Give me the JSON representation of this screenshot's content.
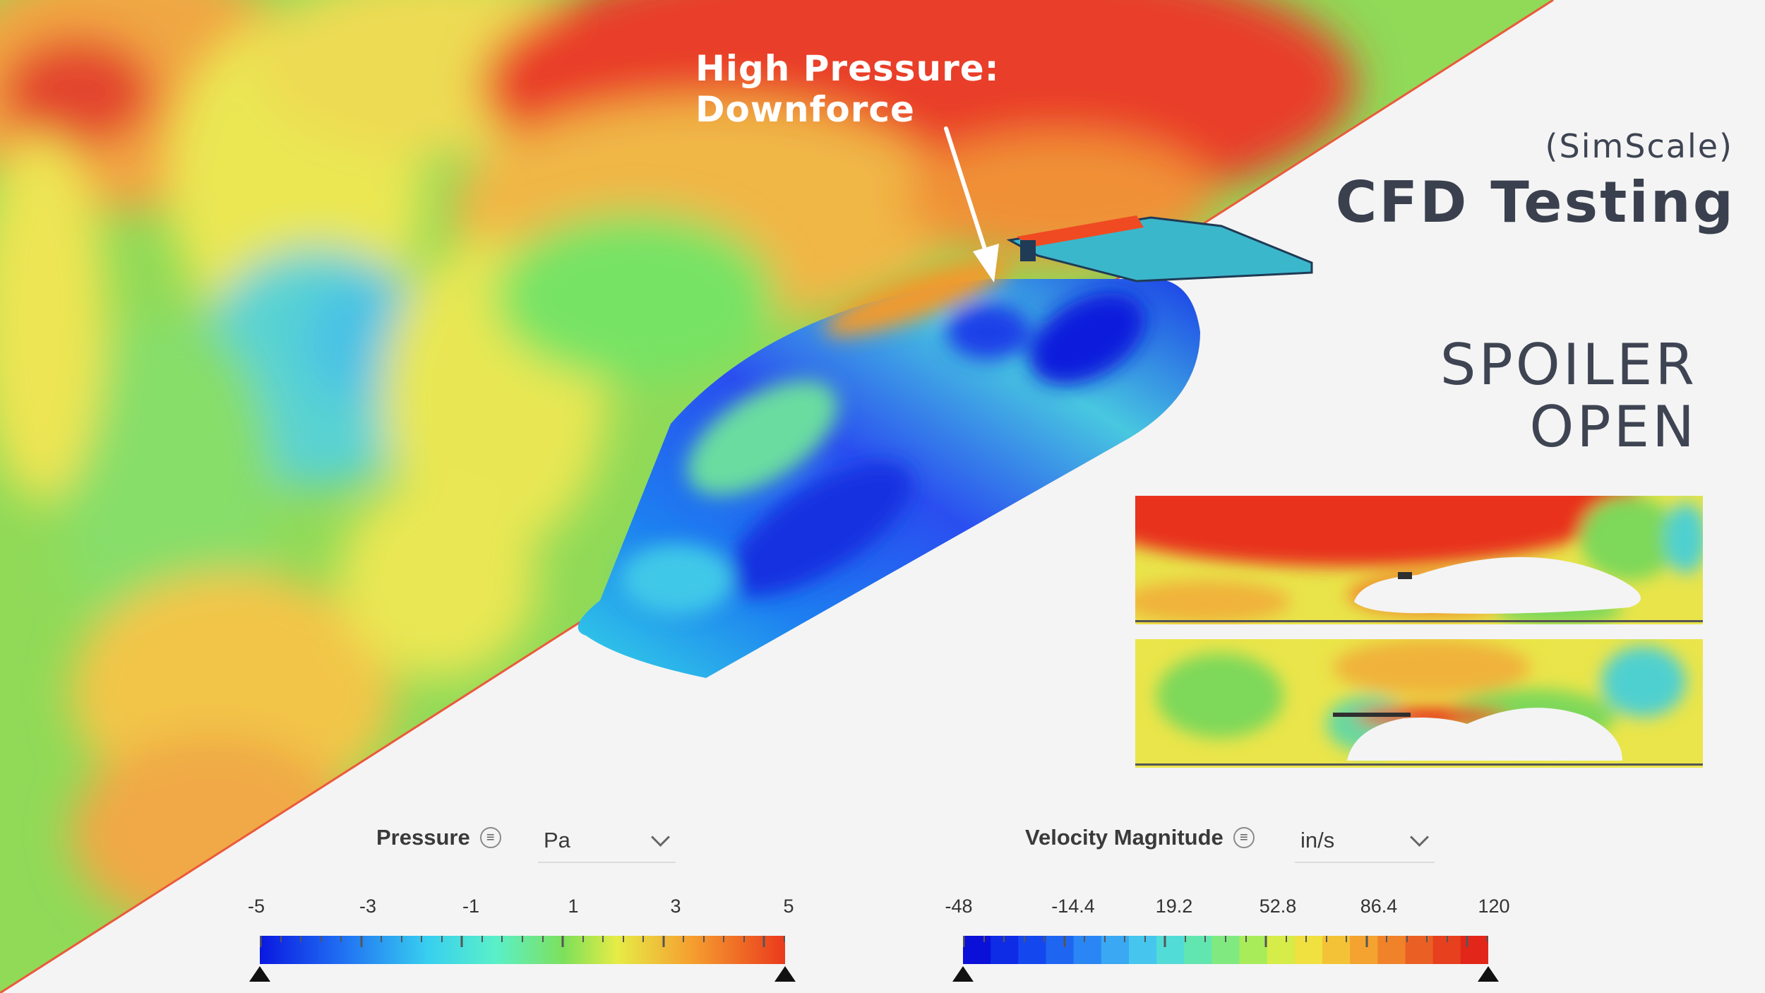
{
  "annotation": {
    "line1": "High Pressure:",
    "line2": "Downforce"
  },
  "branding": {
    "vendor": "(SimScale)",
    "title": "CFD Testing"
  },
  "configuration": {
    "line1": "SPOILER",
    "line2": "OPEN"
  },
  "pressure_legend": {
    "title": "Pressure",
    "menu_icon": "list-menu-icon",
    "unit": "Pa",
    "ticks": [
      "-5",
      "-3",
      "-1",
      "1",
      "3",
      "5"
    ],
    "range": [
      -5,
      5
    ]
  },
  "velocity_legend": {
    "title": "Velocity Magnitude",
    "menu_icon": "list-menu-icon",
    "unit": "in/s",
    "ticks": [
      "-48",
      "-14.4",
      "19.2",
      "52.8",
      "86.4",
      "120"
    ],
    "range": [
      -48,
      120
    ]
  },
  "colors": {
    "low": "#0a18e0",
    "mid": "#5ee08a",
    "high": "#e8321c",
    "background": "#f4f4f4",
    "text_dark": "#3a404e"
  }
}
